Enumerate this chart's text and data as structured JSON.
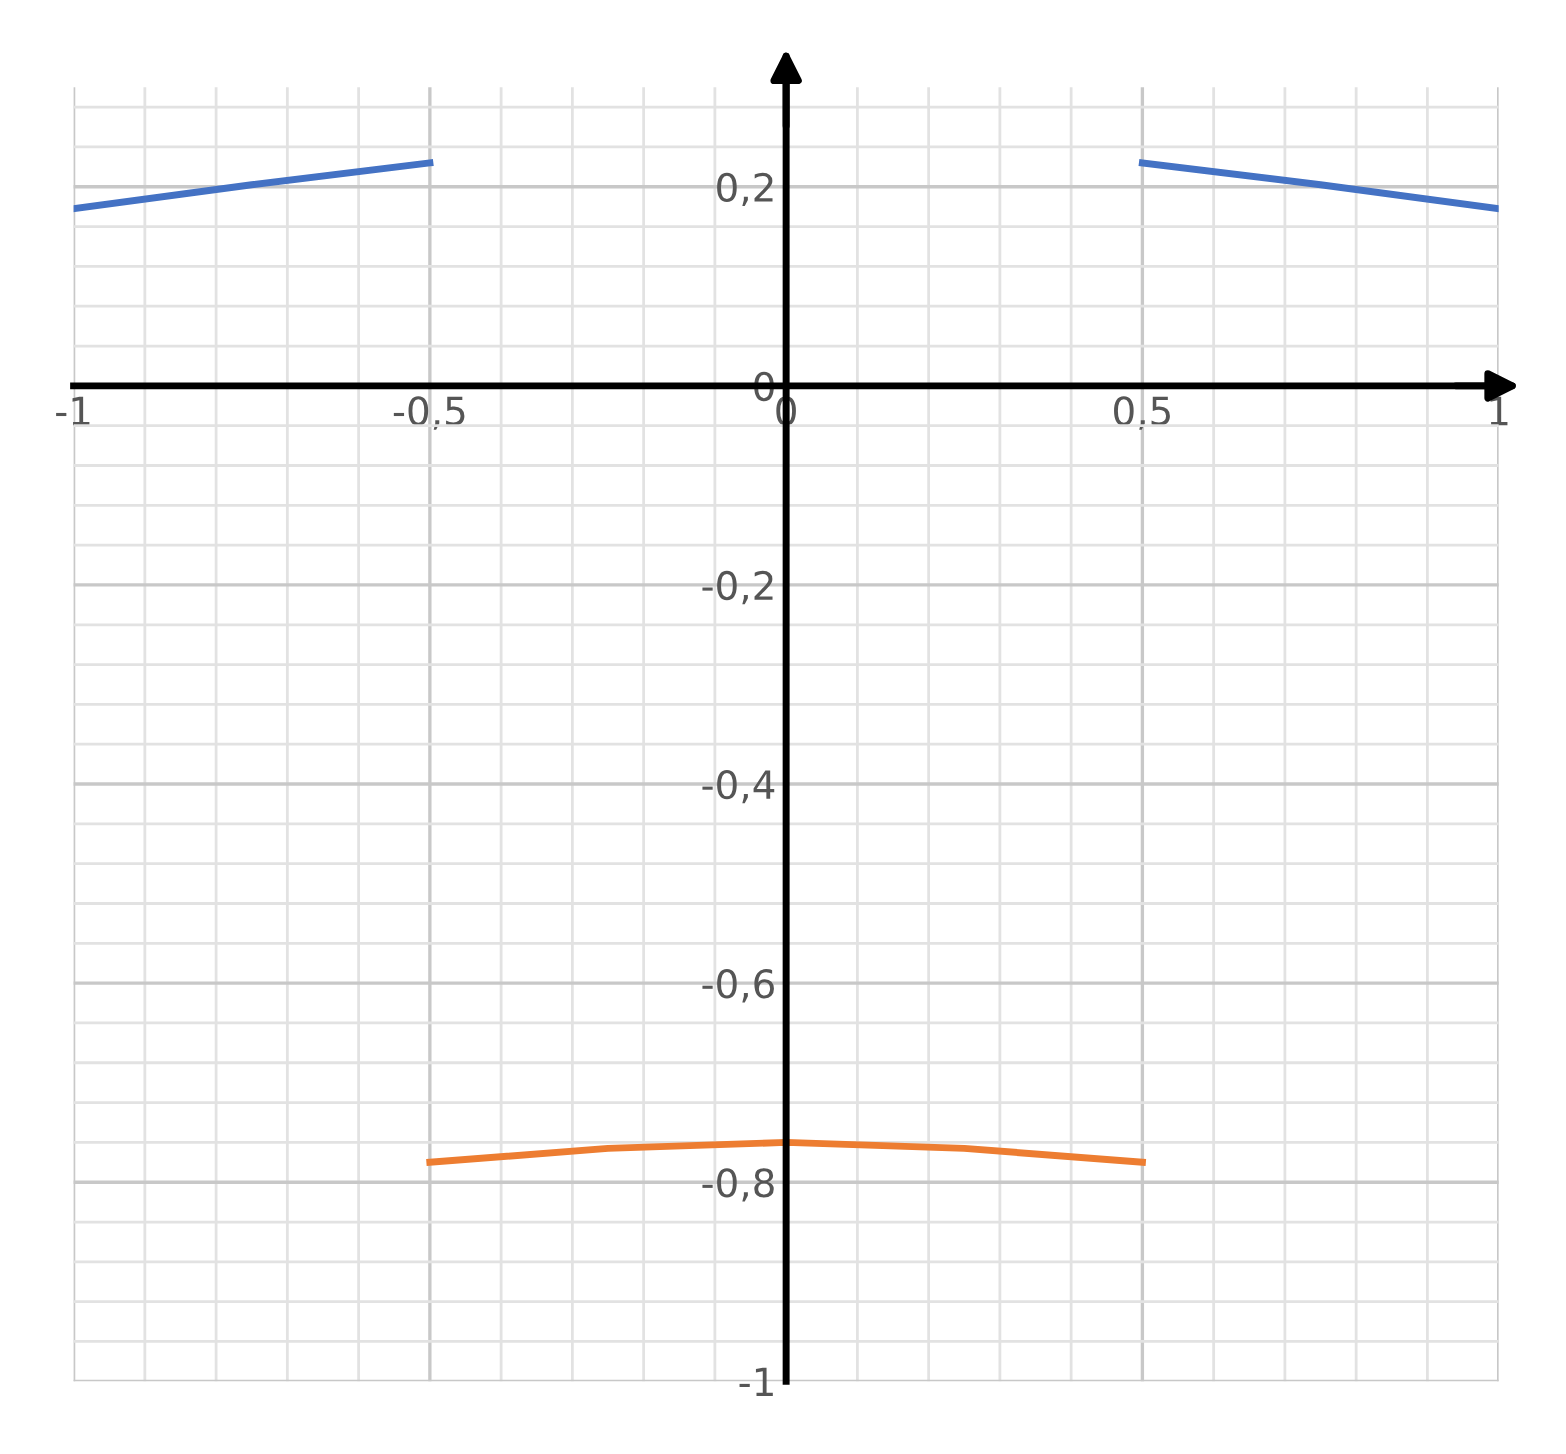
{
  "chart_data": {
    "type": "line",
    "series": [
      {
        "color": "#4472c4",
        "x": [
          -1,
          -0.75,
          -0.5,
          0,
          0.5,
          0.75,
          1
        ],
        "values": [
          0.178,
          0.202,
          0.224,
          null,
          0.224,
          0.202,
          0.178
        ]
      },
      {
        "color": "#ed7d31",
        "x": [
          -0.5,
          -0.25,
          0,
          0.25,
          0.5
        ],
        "values": [
          -0.78,
          -0.766,
          -0.76,
          -0.766,
          -0.78
        ]
      }
    ],
    "xlim": [
      -1,
      1
    ],
    "ylim": [
      -1,
      0.3
    ],
    "xticks": [
      -1,
      {
        "value": -0.5,
        "label": "-0,5"
      },
      0,
      {
        "value": 0.5,
        "label": "0,5"
      },
      1
    ],
    "yticks": [
      {
        "value": 0.2,
        "label": "0,2"
      },
      0,
      {
        "value": -0.2,
        "label": "-0,2"
      },
      {
        "value": -0.4,
        "label": "-0,4"
      },
      {
        "value": -0.6,
        "label": "-0,6"
      },
      {
        "value": -0.8,
        "label": "-0,8"
      },
      -1
    ],
    "grid": true,
    "legend": false,
    "marker": "none",
    "line_style": "solid"
  }
}
